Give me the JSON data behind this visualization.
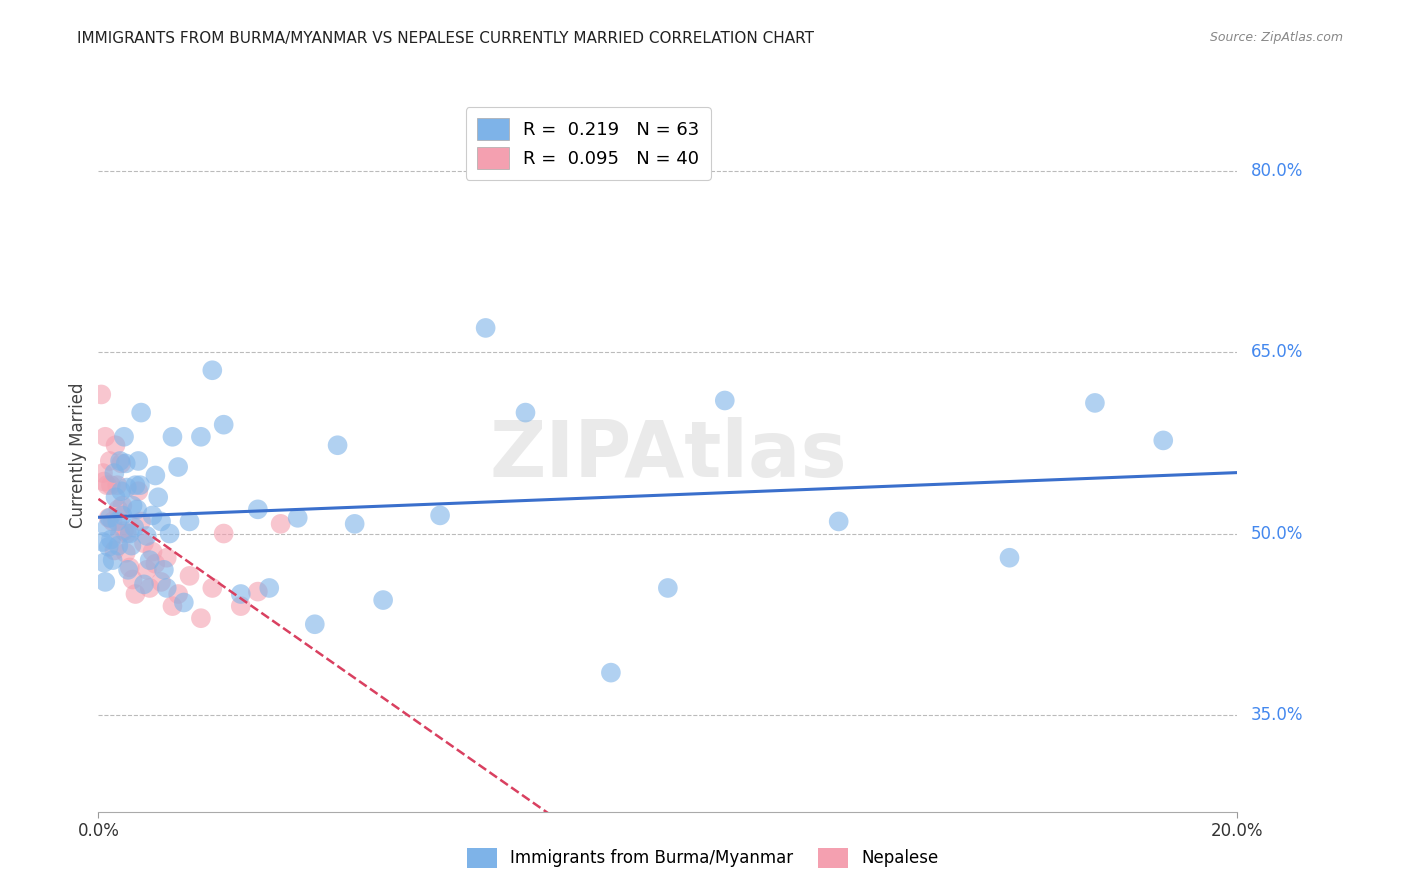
{
  "title": "IMMIGRANTS FROM BURMA/MYANMAR VS NEPALESE CURRENTLY MARRIED CORRELATION CHART",
  "source": "Source: ZipAtlas.com",
  "ylabel": "Currently Married",
  "right_yticks": [
    "80.0%",
    "65.0%",
    "50.0%",
    "35.0%"
  ],
  "right_ytick_vals": [
    0.8,
    0.65,
    0.5,
    0.35
  ],
  "xlim": [
    0.0,
    0.2
  ],
  "ylim": [
    0.27,
    0.86
  ],
  "legend1_label": "R =  0.219   N = 63",
  "legend2_label": "R =  0.095   N = 40",
  "color_blue": "#7EB3E8",
  "color_pink": "#F4A0B0",
  "line_blue": "#3A6FCC",
  "line_pink": "#D94060",
  "watermark": "ZIPAtlas",
  "blue_x": [
    0.0008,
    0.001,
    0.0012,
    0.0015,
    0.0018,
    0.002,
    0.0022,
    0.0025,
    0.0028,
    0.003,
    0.0033,
    0.0035,
    0.0038,
    0.004,
    0.0042,
    0.0045,
    0.0048,
    0.005,
    0.0052,
    0.0055,
    0.0058,
    0.006,
    0.0063,
    0.0065,
    0.0068,
    0.007,
    0.0073,
    0.0075,
    0.008,
    0.0085,
    0.009,
    0.0095,
    0.01,
    0.0105,
    0.011,
    0.0115,
    0.012,
    0.0125,
    0.013,
    0.014,
    0.015,
    0.016,
    0.018,
    0.02,
    0.022,
    0.025,
    0.028,
    0.03,
    0.035,
    0.038,
    0.042,
    0.045,
    0.05,
    0.06,
    0.068,
    0.075,
    0.09,
    0.1,
    0.11,
    0.13,
    0.16,
    0.175,
    0.187
  ],
  "blue_y": [
    0.493,
    0.476,
    0.46,
    0.505,
    0.489,
    0.513,
    0.495,
    0.478,
    0.55,
    0.53,
    0.51,
    0.49,
    0.56,
    0.535,
    0.515,
    0.58,
    0.558,
    0.538,
    0.47,
    0.5,
    0.49,
    0.523,
    0.505,
    0.54,
    0.52,
    0.56,
    0.54,
    0.6,
    0.458,
    0.498,
    0.478,
    0.515,
    0.548,
    0.53,
    0.51,
    0.47,
    0.455,
    0.5,
    0.58,
    0.555,
    0.443,
    0.51,
    0.58,
    0.635,
    0.59,
    0.45,
    0.52,
    0.455,
    0.513,
    0.425,
    0.573,
    0.508,
    0.445,
    0.515,
    0.67,
    0.6,
    0.385,
    0.455,
    0.61,
    0.51,
    0.48,
    0.608,
    0.577
  ],
  "pink_x": [
    0.0005,
    0.0008,
    0.001,
    0.0012,
    0.0015,
    0.0018,
    0.002,
    0.0022,
    0.0025,
    0.0028,
    0.003,
    0.0033,
    0.0035,
    0.0038,
    0.004,
    0.0042,
    0.0045,
    0.0048,
    0.005,
    0.0055,
    0.006,
    0.0065,
    0.007,
    0.0075,
    0.008,
    0.0085,
    0.009,
    0.0095,
    0.01,
    0.011,
    0.012,
    0.013,
    0.014,
    0.016,
    0.018,
    0.02,
    0.022,
    0.025,
    0.028,
    0.032
  ],
  "pink_y": [
    0.615,
    0.55,
    0.543,
    0.58,
    0.54,
    0.513,
    0.56,
    0.54,
    0.51,
    0.486,
    0.573,
    0.54,
    0.52,
    0.5,
    0.558,
    0.523,
    0.502,
    0.484,
    0.5,
    0.472,
    0.462,
    0.45,
    0.535,
    0.51,
    0.492,
    0.47,
    0.455,
    0.485,
    0.475,
    0.46,
    0.48,
    0.44,
    0.45,
    0.465,
    0.43,
    0.455,
    0.5,
    0.44,
    0.452,
    0.508
  ]
}
